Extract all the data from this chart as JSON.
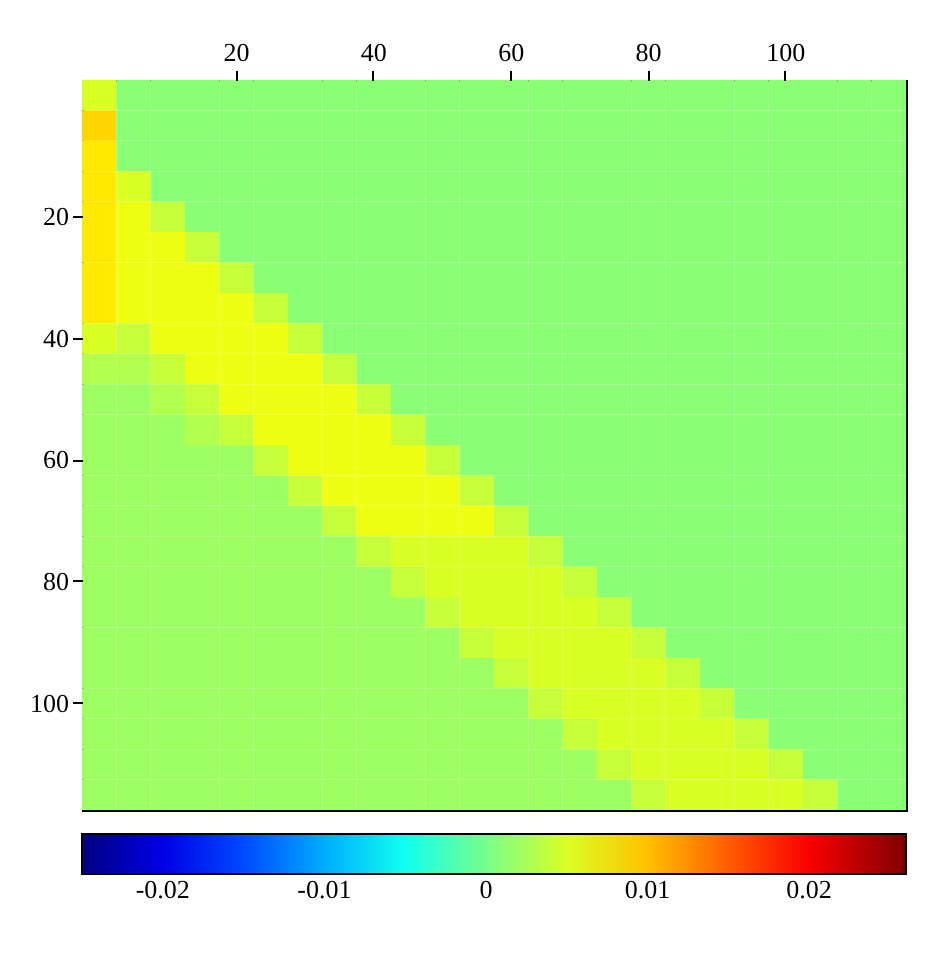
{
  "chart_data": {
    "type": "heatmap",
    "categories": [
      null,
      null,
      null,
      null,
      "20",
      null,
      null,
      null,
      "40",
      null,
      null,
      null,
      "60",
      null,
      null,
      null,
      "80",
      null,
      null,
      null,
      "100",
      null,
      null,
      null
    ],
    "y_categories": [
      null,
      null,
      null,
      null,
      "20",
      null,
      null,
      null,
      "40",
      null,
      null,
      null,
      "60",
      null,
      null,
      null,
      "80",
      null,
      null,
      null,
      "100",
      null,
      null,
      null
    ],
    "clim": [
      -0.025,
      0.026
    ],
    "cticks": [
      -0.02,
      -0.01,
      0,
      0.01,
      0.02
    ],
    "cells": [
      [
        0.005,
        0.001,
        0.001,
        0.001,
        0.001,
        0.001,
        0.001,
        0.001,
        0.001,
        0.001,
        0.001,
        0.001,
        0.001,
        0.001,
        0.001,
        0.001,
        0.001,
        0.001,
        0.001,
        0.001,
        0.001,
        0.001,
        0.001,
        0.001
      ],
      [
        0.009,
        0.001,
        0.001,
        0.001,
        0.001,
        0.001,
        0.001,
        0.001,
        0.001,
        0.001,
        0.001,
        0.001,
        0.001,
        0.001,
        0.001,
        0.001,
        0.001,
        0.001,
        0.001,
        0.001,
        0.001,
        0.001,
        0.001,
        0.001
      ],
      [
        0.008,
        0.001,
        0.001,
        0.001,
        0.001,
        0.001,
        0.001,
        0.001,
        0.001,
        0.001,
        0.001,
        0.001,
        0.001,
        0.001,
        0.001,
        0.001,
        0.001,
        0.001,
        0.001,
        0.001,
        0.001,
        0.001,
        0.001,
        0.001
      ],
      [
        0.008,
        0.005,
        0.001,
        0.001,
        0.001,
        0.001,
        0.001,
        0.001,
        0.001,
        0.001,
        0.001,
        0.001,
        0.001,
        0.001,
        0.001,
        0.001,
        0.001,
        0.001,
        0.001,
        0.001,
        0.001,
        0.001,
        0.001,
        0.001
      ],
      [
        0.008,
        0.006,
        0.004,
        0.001,
        0.001,
        0.001,
        0.001,
        0.001,
        0.001,
        0.001,
        0.001,
        0.001,
        0.001,
        0.001,
        0.001,
        0.001,
        0.001,
        0.001,
        0.001,
        0.001,
        0.001,
        0.001,
        0.001,
        0.001
      ],
      [
        0.008,
        0.006,
        0.006,
        0.004,
        0.001,
        0.001,
        0.001,
        0.001,
        0.001,
        0.001,
        0.001,
        0.001,
        0.001,
        0.001,
        0.001,
        0.001,
        0.001,
        0.001,
        0.001,
        0.001,
        0.001,
        0.001,
        0.001,
        0.001
      ],
      [
        0.008,
        0.006,
        0.006,
        0.006,
        0.004,
        0.001,
        0.001,
        0.001,
        0.001,
        0.001,
        0.001,
        0.001,
        0.001,
        0.001,
        0.001,
        0.001,
        0.001,
        0.001,
        0.001,
        0.001,
        0.001,
        0.001,
        0.001,
        0.001
      ],
      [
        0.008,
        0.006,
        0.006,
        0.006,
        0.006,
        0.004,
        0.001,
        0.001,
        0.001,
        0.001,
        0.001,
        0.001,
        0.001,
        0.001,
        0.001,
        0.001,
        0.001,
        0.001,
        0.001,
        0.001,
        0.001,
        0.001,
        0.001,
        0.001
      ],
      [
        0.005,
        0.004,
        0.006,
        0.006,
        0.006,
        0.006,
        0.004,
        0.001,
        0.001,
        0.001,
        0.001,
        0.001,
        0.001,
        0.001,
        0.001,
        0.001,
        0.001,
        0.001,
        0.001,
        0.001,
        0.001,
        0.001,
        0.001,
        0.001
      ],
      [
        0.003,
        0.003,
        0.004,
        0.006,
        0.006,
        0.006,
        0.006,
        0.004,
        0.001,
        0.001,
        0.001,
        0.001,
        0.001,
        0.001,
        0.001,
        0.001,
        0.001,
        0.001,
        0.001,
        0.001,
        0.001,
        0.001,
        0.001,
        0.001
      ],
      [
        0.002,
        0.002,
        0.003,
        0.004,
        0.006,
        0.006,
        0.006,
        0.006,
        0.004,
        0.001,
        0.001,
        0.001,
        0.001,
        0.001,
        0.001,
        0.001,
        0.001,
        0.001,
        0.001,
        0.001,
        0.001,
        0.001,
        0.001,
        0.001
      ],
      [
        0.002,
        0.002,
        0.002,
        0.003,
        0.004,
        0.006,
        0.006,
        0.006,
        0.006,
        0.004,
        0.001,
        0.001,
        0.001,
        0.001,
        0.001,
        0.001,
        0.001,
        0.001,
        0.001,
        0.001,
        0.001,
        0.001,
        0.001,
        0.001
      ],
      [
        0.002,
        0.002,
        0.002,
        0.002,
        0.002,
        0.004,
        0.006,
        0.006,
        0.006,
        0.006,
        0.004,
        0.001,
        0.001,
        0.001,
        0.001,
        0.001,
        0.001,
        0.001,
        0.001,
        0.001,
        0.001,
        0.001,
        0.001,
        0.001
      ],
      [
        0.002,
        0.002,
        0.002,
        0.002,
        0.002,
        0.002,
        0.004,
        0.006,
        0.006,
        0.006,
        0.006,
        0.004,
        0.001,
        0.001,
        0.001,
        0.001,
        0.001,
        0.001,
        0.001,
        0.001,
        0.001,
        0.001,
        0.001,
        0.001
      ],
      [
        0.002,
        0.002,
        0.002,
        0.002,
        0.002,
        0.002,
        0.002,
        0.004,
        0.006,
        0.006,
        0.006,
        0.006,
        0.004,
        0.001,
        0.001,
        0.001,
        0.001,
        0.001,
        0.001,
        0.001,
        0.001,
        0.001,
        0.001,
        0.001
      ],
      [
        0.002,
        0.002,
        0.002,
        0.002,
        0.002,
        0.002,
        0.002,
        0.002,
        0.004,
        0.005,
        0.005,
        0.005,
        0.005,
        0.004,
        0.001,
        0.001,
        0.001,
        0.001,
        0.001,
        0.001,
        0.001,
        0.001,
        0.001,
        0.001
      ],
      [
        0.002,
        0.002,
        0.002,
        0.002,
        0.002,
        0.002,
        0.002,
        0.002,
        0.002,
        0.004,
        0.005,
        0.005,
        0.005,
        0.005,
        0.004,
        0.001,
        0.001,
        0.001,
        0.001,
        0.001,
        0.001,
        0.001,
        0.001,
        0.001
      ],
      [
        0.002,
        0.002,
        0.002,
        0.002,
        0.002,
        0.002,
        0.002,
        0.002,
        0.002,
        0.002,
        0.004,
        0.005,
        0.005,
        0.005,
        0.005,
        0.004,
        0.001,
        0.001,
        0.001,
        0.001,
        0.001,
        0.001,
        0.001,
        0.001
      ],
      [
        0.002,
        0.002,
        0.002,
        0.002,
        0.002,
        0.002,
        0.002,
        0.002,
        0.002,
        0.002,
        0.002,
        0.004,
        0.005,
        0.005,
        0.005,
        0.005,
        0.004,
        0.001,
        0.001,
        0.001,
        0.001,
        0.001,
        0.001,
        0.001
      ],
      [
        0.002,
        0.002,
        0.002,
        0.002,
        0.002,
        0.002,
        0.002,
        0.002,
        0.002,
        0.002,
        0.002,
        0.002,
        0.004,
        0.005,
        0.005,
        0.005,
        0.005,
        0.004,
        0.001,
        0.001,
        0.001,
        0.001,
        0.001,
        0.001
      ],
      [
        0.002,
        0.002,
        0.002,
        0.002,
        0.002,
        0.002,
        0.002,
        0.002,
        0.002,
        0.002,
        0.002,
        0.002,
        0.002,
        0.004,
        0.005,
        0.005,
        0.005,
        0.005,
        0.004,
        0.001,
        0.001,
        0.001,
        0.001,
        0.001
      ],
      [
        0.002,
        0.002,
        0.002,
        0.002,
        0.002,
        0.002,
        0.002,
        0.002,
        0.002,
        0.002,
        0.002,
        0.002,
        0.002,
        0.002,
        0.004,
        0.005,
        0.005,
        0.005,
        0.005,
        0.004,
        0.001,
        0.001,
        0.001,
        0.001
      ],
      [
        0.002,
        0.002,
        0.002,
        0.002,
        0.002,
        0.002,
        0.002,
        0.002,
        0.002,
        0.002,
        0.002,
        0.002,
        0.002,
        0.002,
        0.002,
        0.004,
        0.005,
        0.005,
        0.005,
        0.005,
        0.004,
        0.001,
        0.001,
        0.001
      ],
      [
        0.002,
        0.002,
        0.002,
        0.002,
        0.002,
        0.002,
        0.002,
        0.002,
        0.002,
        0.002,
        0.002,
        0.002,
        0.002,
        0.002,
        0.002,
        0.002,
        0.004,
        0.005,
        0.005,
        0.005,
        0.005,
        0.004,
        0.001,
        0.001
      ]
    ]
  }
}
